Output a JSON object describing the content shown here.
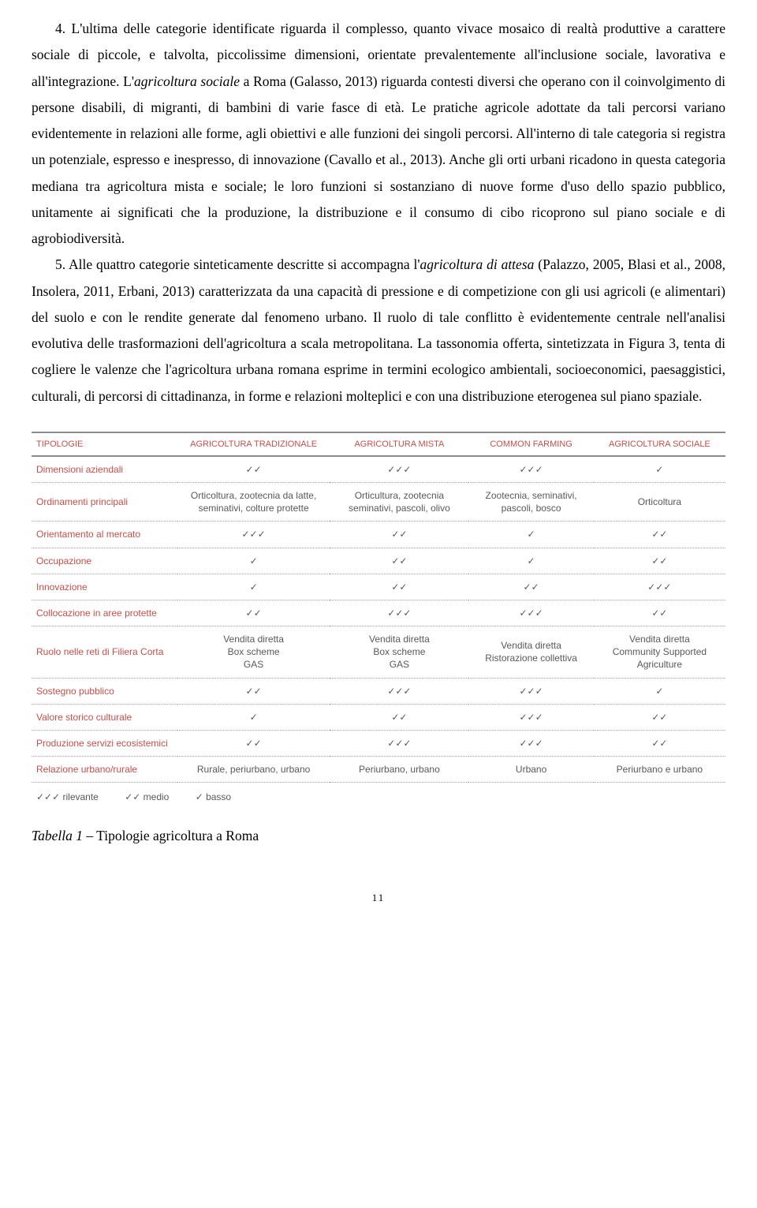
{
  "paragraphs": {
    "p4": "4. L'ultima delle categorie identificate riguarda il complesso, quanto vivace mosaico di realtà produttive a carattere sociale di piccole, e talvolta, piccolissime dimensioni, orientate prevalentemente all'inclusione sociale, lavorativa e all'integrazione. L'<i>agricoltura sociale</i> a Roma (Galasso, 2013) riguarda contesti diversi che operano con il coinvolgimento di persone disabili, di migranti, di bambini di varie fasce di età. Le pratiche agricole adottate da tali percorsi variano evidentemente in relazioni alle forme, agli obiettivi e alle funzioni dei singoli percorsi. All'interno di tale categoria si registra un potenziale, espresso e inespresso, di innovazione (Cavallo et al., 2013). Anche gli orti urbani ricadono in questa categoria mediana tra agricoltura mista e sociale; le loro funzioni si sostanziano di nuove forme d'uso dello spazio pubblico, unitamente ai significati che la produzione, la distribuzione e il consumo di cibo ricoprono sul piano sociale e di agrobiodiversità.",
    "p5": "5. Alle quattro categorie sinteticamente descritte si accompagna l'<i>agricoltura di attesa</i> (Palazzo, 2005, Blasi et al., 2008, Insolera, 2011, Erbani, 2013) caratterizzata da una capacità di pressione e di competizione con gli usi agricoli (e alimentari) del suolo e con le rendite generate dal fenomeno urbano. Il ruolo di tale conflitto è evidentemente centrale nell'analisi evolutiva delle trasformazioni dell'agricoltura a scala metropolitana. La tassonomia offerta, sintetizzata in Figura 3, tenta di cogliere le valenze che l'agricoltura urbana romana esprime in termini ecologico ambientali, socioeconomici, paesaggistici, culturali, di percorsi di cittadinanza, in forme e relazioni molteplici e con una distribuzione eterogenea sul piano spaziale."
  },
  "table": {
    "type": "table",
    "accent_color": "#c0504d",
    "text_color": "#595959",
    "border_color_heavy": "#8c8c8c",
    "border_color_dotted": "#a0a0a0",
    "columns": [
      "TIPOLOGIE",
      "AGRICOLTURA TRADIZIONALE",
      "AGRICOLTURA MISTA",
      "COMMON FARMING",
      "AGRICOLTURA SOCIALE"
    ],
    "rows": [
      {
        "label": "Dimensioni aziendali",
        "c1": "✓✓",
        "c2": "✓✓✓",
        "c3": "✓✓✓",
        "c4": "✓"
      },
      {
        "label": "Ordinamenti principali",
        "c1": "Orticoltura, zootecnia da latte, seminativi, colture protette",
        "c2": "Orticultura, zootecnia seminativi, pascoli, olivo",
        "c3": "Zootecnia, seminativi, pascoli, bosco",
        "c4": "Orticoltura"
      },
      {
        "label": "Orientamento al mercato",
        "c1": "✓✓✓",
        "c2": "✓✓",
        "c3": "✓",
        "c4": "✓✓"
      },
      {
        "label": "Occupazione",
        "c1": "✓",
        "c2": "✓✓",
        "c3": "✓",
        "c4": "✓✓"
      },
      {
        "label": "Innovazione",
        "c1": "✓",
        "c2": "✓✓",
        "c3": "✓✓",
        "c4": "✓✓✓"
      },
      {
        "label": "Collocazione in aree protette",
        "c1": "✓✓",
        "c2": "✓✓✓",
        "c3": "✓✓✓",
        "c4": "✓✓"
      },
      {
        "label": "Ruolo nelle reti di Filiera Corta",
        "c1": "Vendita diretta\nBox scheme\nGAS",
        "c2": "Vendita diretta\nBox scheme\nGAS",
        "c3": "Vendita diretta\nRistorazione collettiva",
        "c4": "Vendita diretta\nCommunity Supported\nAgriculture"
      },
      {
        "label": "Sostegno pubblico",
        "c1": "✓✓",
        "c2": "✓✓✓",
        "c3": "✓✓✓",
        "c4": "✓"
      },
      {
        "label": "Valore storico culturale",
        "c1": "✓",
        "c2": "✓✓",
        "c3": "✓✓✓",
        "c4": "✓✓"
      },
      {
        "label": "Produzione servizi ecosistemici",
        "c1": "✓✓",
        "c2": "✓✓✓",
        "c3": "✓✓✓",
        "c4": "✓✓"
      },
      {
        "label": "Relazione urbano/rurale",
        "c1": "Rurale, periurbano, urbano",
        "c2": "Periurbano, urbano",
        "c3": "Urbano",
        "c4": "Periurbano e urbano"
      }
    ],
    "legend": {
      "rilevante": "✓✓✓ rilevante",
      "medio": "✓✓ medio",
      "basso": "✓ basso"
    }
  },
  "caption": {
    "label": "Tabella 1",
    "text": " – Tipologie agricoltura a Roma"
  },
  "page_number": "11"
}
